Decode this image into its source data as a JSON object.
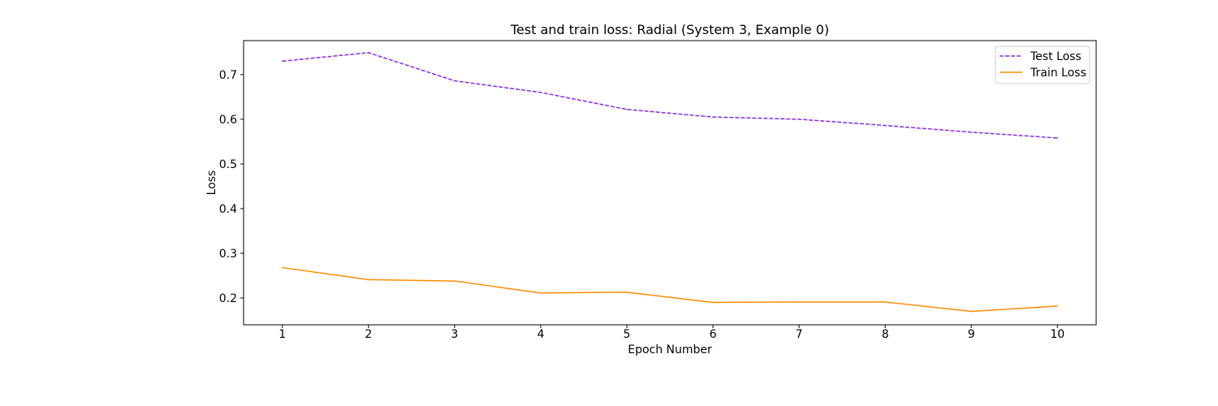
{
  "chart_data": {
    "type": "line",
    "title": "Test and train loss: Radial (System 3, Example 0)",
    "xlabel": "Epoch Number",
    "ylabel": "Loss",
    "x": [
      1,
      2,
      3,
      4,
      5,
      6,
      7,
      8,
      9,
      10
    ],
    "xticks": [
      "1",
      "2",
      "3",
      "4",
      "5",
      "6",
      "7",
      "8",
      "9",
      "10"
    ],
    "yticks": [
      "0.2",
      "0.3",
      "0.4",
      "0.5",
      "0.6",
      "0.7"
    ],
    "xlim": [
      0.55,
      10.45
    ],
    "ylim": [
      0.14,
      0.776
    ],
    "grid": false,
    "legend_position": "top-right",
    "series": [
      {
        "name": "Test Loss",
        "color": "#8a2be2",
        "style": "dashed",
        "values": [
          0.73,
          0.749,
          0.686,
          0.66,
          0.622,
          0.605,
          0.6,
          0.586,
          0.571,
          0.558
        ]
      },
      {
        "name": "Train Loss",
        "color": "#ff8c00",
        "style": "solid",
        "values": [
          0.268,
          0.241,
          0.238,
          0.211,
          0.213,
          0.19,
          0.191,
          0.191,
          0.17,
          0.182
        ]
      }
    ]
  }
}
